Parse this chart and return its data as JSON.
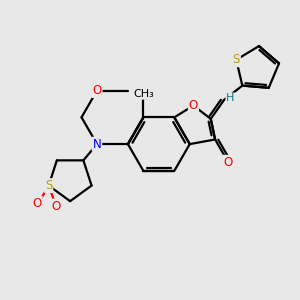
{
  "bg_color": "#e8e8e8",
  "bond_color": "#000000",
  "bond_width": 1.6,
  "atom_colors": {
    "O": "#ff0000",
    "N": "#0000ff",
    "S": "#b8a000",
    "H": "#008080",
    "C": "#000000"
  },
  "font_size": 8.5
}
